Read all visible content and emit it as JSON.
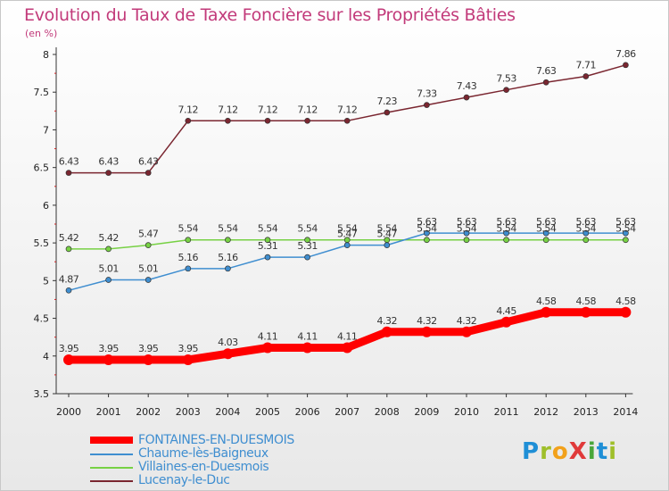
{
  "title": "Evolution du Taux de Taxe Foncière sur les Propriétés Bâties",
  "unit_label": "(en %)",
  "logo_text": "ProXiti",
  "chart_data": {
    "type": "line",
    "x": [
      2000,
      2001,
      2002,
      2003,
      2004,
      2005,
      2006,
      2007,
      2008,
      2009,
      2010,
      2011,
      2012,
      2013,
      2014
    ],
    "ylim": [
      3.5,
      8
    ],
    "yticks": [
      3.5,
      4,
      4.5,
      5,
      5.5,
      6,
      6.5,
      7,
      7.5,
      8
    ],
    "grid": false,
    "legend_position": "bottom-left",
    "series": [
      {
        "name": "FONTAINES-EN-DUESMOIS",
        "color": "#ff0000",
        "values": [
          3.95,
          3.95,
          3.95,
          3.95,
          4.03,
          4.11,
          4.11,
          4.11,
          4.32,
          4.32,
          4.32,
          4.45,
          4.58,
          4.58,
          4.58
        ],
        "labels": [
          "3.95",
          "3.95",
          "3.95",
          "3.95",
          "4.03",
          "4.11",
          "4.11",
          "4.11",
          "4.32",
          "4.32",
          "4.32",
          "4.45",
          "4.58",
          "4.58",
          "4.58"
        ]
      },
      {
        "name": "Chaume-lès-Baigneux",
        "color": "#3f8ed0",
        "values": [
          4.87,
          5.01,
          5.01,
          5.16,
          5.16,
          5.31,
          5.31,
          5.47,
          5.47,
          5.63,
          5.63,
          5.63,
          5.63,
          5.63,
          5.63
        ],
        "labels": [
          "4.87",
          "5.01",
          "5.01",
          "5.16",
          "5.16",
          "5.31",
          "5.31",
          "5.47",
          "5.47",
          "5.63",
          "5.63",
          "5.63",
          "5.63",
          "5.63",
          "5.63"
        ]
      },
      {
        "name": "Villaines-en-Duesmois",
        "color": "#77d144",
        "values": [
          5.42,
          5.42,
          5.47,
          5.54,
          5.54,
          5.54,
          5.54,
          5.54,
          5.54,
          5.54,
          5.54,
          5.54,
          5.54,
          5.54,
          5.54
        ],
        "labels": [
          "5.42",
          "5.42",
          "5.47",
          "5.54",
          "5.54",
          "5.54",
          "5.54",
          "5.54",
          "5.54",
          "5.54",
          "5.54",
          "5.54",
          "5.54",
          "5.54",
          "5.54"
        ]
      },
      {
        "name": "Lucenay-le-Duc",
        "color": "#7a2630",
        "values": [
          6.43,
          6.43,
          6.43,
          7.12,
          7.12,
          7.12,
          7.12,
          7.12,
          7.23,
          7.33,
          7.43,
          7.53,
          7.63,
          7.71,
          7.86
        ],
        "labels": [
          "6.43",
          "6.43",
          "6.43",
          "7.12",
          "7.12",
          "7.12",
          "7.12",
          "7.12",
          "7.23",
          "7.33",
          "7.43",
          "7.53",
          "7.63",
          "7.71",
          "7.86"
        ]
      }
    ]
  },
  "legend": [
    {
      "label": "FONTAINES-EN-DUESMOIS",
      "color": "#ff0000"
    },
    {
      "label": "Chaume-lès-Baigneux",
      "color": "#3f8ed0"
    },
    {
      "label": "Villaines-en-Duesmois",
      "color": "#77d144"
    },
    {
      "label": "Lucenay-le-Duc",
      "color": "#7a2630"
    }
  ]
}
